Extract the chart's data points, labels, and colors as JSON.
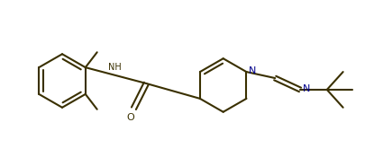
{
  "bg_color": "#ffffff",
  "line_color": "#3a3000",
  "line_width": 1.5,
  "figsize": [
    4.06,
    1.85
  ],
  "dpi": 100,
  "xlim": [
    0,
    4.06
  ],
  "ylim": [
    0,
    1.85
  ]
}
